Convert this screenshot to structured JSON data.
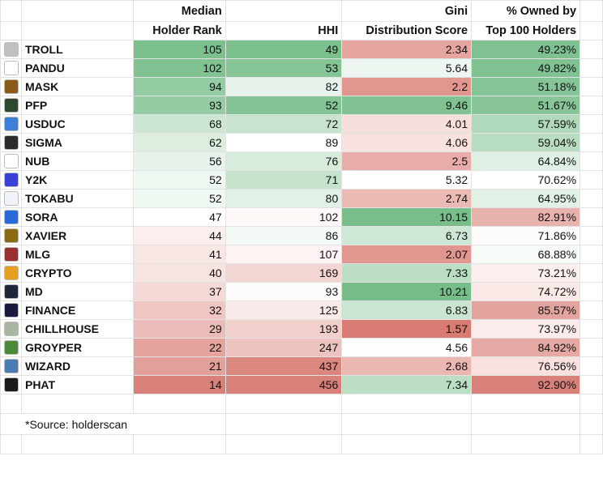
{
  "header": {
    "rank_line1": "Median",
    "rank_line2": "Holder Rank",
    "hhi": "HHI",
    "gini_line1": "Gini",
    "gini_line2": "Distribution Score",
    "owned_line1": "% Owned by",
    "owned_line2": "Top 100 Holders"
  },
  "rows": [
    {
      "name": "TROLL",
      "rank": "105",
      "hhi": "49",
      "gini": "2.34",
      "owned": "49.23%",
      "logo_icon": "troll-face-icon",
      "logo_color": "#c0c0c0",
      "rank_bg": "#7cc08e",
      "hhi_bg": "#7cc08e",
      "gini_bg": "#e6a59f",
      "owned_bg": "#7fc191"
    },
    {
      "name": "PANDU",
      "rank": "102",
      "hhi": "53",
      "gini": "5.64",
      "owned": "49.82%",
      "logo_icon": "panda-icon",
      "logo_color": "#ffffff",
      "rank_bg": "#81c293",
      "hhi_bg": "#84c495",
      "gini_bg": "#eef6f0",
      "owned_bg": "#81c293"
    },
    {
      "name": "MASK",
      "rank": "94",
      "hhi": "82",
      "gini": "2.2",
      "owned": "51.18%",
      "logo_icon": "mask-icon",
      "logo_color": "#8a5a18",
      "rank_bg": "#93cba2",
      "hhi_bg": "#e7f3ea",
      "gini_bg": "#e29690",
      "owned_bg": "#86c597"
    },
    {
      "name": "PFP",
      "rank": "93",
      "hhi": "52",
      "gini": "9.46",
      "owned": "51.67%",
      "logo_icon": "frog-icon",
      "logo_color": "#2e4a2e",
      "rank_bg": "#95cca3",
      "hhi_bg": "#83c394",
      "gini_bg": "#80c292",
      "owned_bg": "#88c698"
    },
    {
      "name": "USDUC",
      "rank": "68",
      "hhi": "72",
      "gini": "4.01",
      "owned": "57.59%",
      "logo_icon": "chart-icon",
      "logo_color": "#3e7fd8",
      "rank_bg": "#cde6d4",
      "hhi_bg": "#c8e4d0",
      "gini_bg": "#f6dfdd",
      "owned_bg": "#b0d9bb"
    },
    {
      "name": "SIGMA",
      "rank": "62",
      "hhi": "89",
      "gini": "4.06",
      "owned": "59.04%",
      "logo_icon": "portrait-icon",
      "logo_color": "#2b2b2b",
      "rank_bg": "#dbeee0",
      "hhi_bg": "#ffffff",
      "gini_bg": "#f7e2e0",
      "owned_bg": "#b9ddc3"
    },
    {
      "name": "NUB",
      "rank": "56",
      "hhi": "76",
      "gini": "2.5",
      "owned": "64.84%",
      "logo_icon": "cat-icon",
      "logo_color": "#ffffff",
      "rank_bg": "#e8f4eb",
      "hhi_bg": "#d8ecdd",
      "gini_bg": "#e8ada8",
      "owned_bg": "#e1f0e5"
    },
    {
      "name": "Y2K",
      "rank": "52",
      "hhi": "71",
      "gini": "5.32",
      "owned": "70.62%",
      "logo_icon": "y2k-icon",
      "logo_color": "#3a3fd8",
      "rank_bg": "#f0f8f2",
      "hhi_bg": "#c5e2cd",
      "gini_bg": "#ffffff",
      "owned_bg": "#ffffff"
    },
    {
      "name": "TOKABU",
      "rank": "52",
      "hhi": "80",
      "gini": "2.74",
      "owned": "64.95%",
      "logo_icon": "bird-icon",
      "logo_color": "#f0f4fa",
      "rank_bg": "#f0f8f2",
      "hhi_bg": "#e2f1e6",
      "gini_bg": "#ecbab5",
      "owned_bg": "#e2f1e6"
    },
    {
      "name": "SORA",
      "rank": "47",
      "hhi": "102",
      "gini": "10.15",
      "owned": "82.91%",
      "logo_icon": "ghost-icon",
      "logo_color": "#2a6ad8",
      "rank_bg": "#ffffff",
      "hhi_bg": "#fdf7f6",
      "gini_bg": "#78be8b",
      "owned_bg": "#e8b2ad"
    },
    {
      "name": "XAVIER",
      "rank": "44",
      "hhi": "86",
      "gini": "6.73",
      "owned": "71.86%",
      "logo_icon": "cartoon-icon",
      "logo_color": "#8a6a10",
      "rank_bg": "#fbefee",
      "hhi_bg": "#f4faf6",
      "gini_bg": "#cfe7d6",
      "owned_bg": "#fefbfb"
    },
    {
      "name": "MLG",
      "rank": "41",
      "hhi": "107",
      "gini": "2.07",
      "owned": "68.88%",
      "logo_icon": "mlg-icon",
      "logo_color": "#9a3030",
      "rank_bg": "#f8e6e4",
      "hhi_bg": "#fcf3f2",
      "gini_bg": "#e29690",
      "owned_bg": "#f6fbf8"
    },
    {
      "name": "CRYPTO",
      "rank": "40",
      "hhi": "169",
      "gini": "7.33",
      "owned": "73.21%",
      "logo_icon": "coin-icon",
      "logo_color": "#e6a020",
      "rank_bg": "#f7e3e1",
      "hhi_bg": "#f3d6d3",
      "gini_bg": "#bbdec4",
      "owned_bg": "#fcf0ef"
    },
    {
      "name": "MD",
      "rank": "37",
      "hhi": "93",
      "gini": "10.21",
      "owned": "74.72%",
      "logo_icon": "md-icon",
      "logo_color": "#202838",
      "rank_bg": "#f4d9d6",
      "hhi_bg": "#fefcfb",
      "gini_bg": "#76bd8a",
      "owned_bg": "#fae9e7"
    },
    {
      "name": "FINANCE",
      "rank": "32",
      "hhi": "125",
      "gini": "6.83",
      "owned": "85.57%",
      "logo_icon": "finance-icon",
      "logo_color": "#1a1a40",
      "rank_bg": "#efc6c2",
      "hhi_bg": "#f9ebe9",
      "gini_bg": "#cae5d2",
      "owned_bg": "#e4a49e"
    },
    {
      "name": "CHILLHOUSE",
      "rank": "29",
      "hhi": "193",
      "gini": "1.57",
      "owned": "73.97%",
      "logo_icon": "house-icon",
      "logo_color": "#a8b8a0",
      "rank_bg": "#ebbcb7",
      "hhi_bg": "#f1cfcb",
      "gini_bg": "#d97a73",
      "owned_bg": "#fbeceb"
    },
    {
      "name": "GROYPER",
      "rank": "22",
      "hhi": "247",
      "gini": "4.56",
      "owned": "84.92%",
      "logo_icon": "frog-icon",
      "logo_color": "#4a8a3a",
      "rank_bg": "#e4a39d",
      "hhi_bg": "#edc3bf",
      "gini_bg": "#fdfefe",
      "owned_bg": "#e5a8a2"
    },
    {
      "name": "WIZARD",
      "rank": "21",
      "hhi": "437",
      "gini": "2.68",
      "owned": "76.56%",
      "logo_icon": "wizard-icon",
      "logo_color": "#4a7ab0",
      "rank_bg": "#e39f99",
      "hhi_bg": "#da8780",
      "gini_bg": "#ebb7b2",
      "owned_bg": "#f7e0de"
    },
    {
      "name": "PHAT",
      "rank": "14",
      "hhi": "456",
      "gini": "7.34",
      "owned": "92.90%",
      "logo_icon": "dots-icon",
      "logo_color": "#1a1a1a",
      "rank_bg": "#d8817a",
      "hhi_bg": "#d8817a",
      "gini_bg": "#bbdec4",
      "owned_bg": "#d8817a"
    }
  ],
  "footer": {
    "source": "*Source: holderscan"
  }
}
